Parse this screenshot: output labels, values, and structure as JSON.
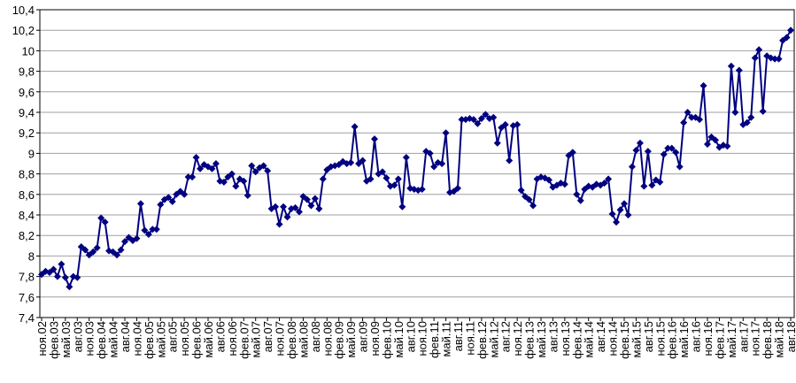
{
  "chart_data": {
    "type": "line",
    "categories": [
      "ноя.02",
      null,
      null,
      "фев.03",
      null,
      null,
      "май.03",
      null,
      null,
      "авг.03",
      null,
      null,
      "ноя.03",
      null,
      null,
      "фев.04",
      null,
      null,
      "май.04",
      null,
      null,
      "авг.04",
      null,
      null,
      "ноя.04",
      null,
      null,
      "фев.05",
      null,
      null,
      "май.05",
      null,
      null,
      "авг.05",
      null,
      null,
      "ноя.05",
      null,
      null,
      "фев.06",
      null,
      null,
      "май.06",
      null,
      null,
      "авг.06",
      null,
      null,
      "ноя.06",
      null,
      null,
      "фев.07",
      null,
      null,
      "май.07",
      null,
      null,
      "авг.07",
      null,
      null,
      "ноя.07",
      null,
      null,
      "фев.08",
      null,
      null,
      "май.08",
      null,
      null,
      "авг.08",
      null,
      null,
      "ноя.08",
      null,
      null,
      "фев.09",
      null,
      null,
      "май.09",
      null,
      null,
      "авг.09",
      null,
      null,
      "ноя.09",
      null,
      null,
      "фев.10",
      null,
      null,
      "май.10",
      null,
      null,
      "авг.10",
      null,
      null,
      "ноя.10",
      null,
      null,
      "фев.11",
      null,
      null,
      "май.11",
      null,
      null,
      "авг.11",
      null,
      null,
      "ноя.11",
      null,
      null,
      "фев.12",
      null,
      null,
      "май.12",
      null,
      null,
      "авг.12",
      null,
      null,
      "ноя.12",
      null,
      null,
      "фев.13",
      null,
      null,
      "май.13",
      null,
      null,
      "авг.13",
      null,
      null,
      "ноя.13",
      null,
      null,
      "фев.14",
      null,
      null,
      "май.14",
      null,
      null,
      "авг.14",
      null,
      null,
      "ноя.14",
      null,
      null,
      "фев.15",
      null,
      null,
      "май.15",
      null,
      null,
      "авг.15",
      null,
      null,
      "ноя.15",
      null,
      null,
      "фев.16",
      null,
      null,
      "май.16",
      null,
      null,
      "авг.16",
      null,
      null,
      "ноя.16",
      null,
      null,
      "фев.17",
      null,
      null,
      "май.17",
      null,
      null,
      "авг.17",
      null,
      null,
      "ноя.17",
      null,
      null,
      "фев.18",
      null,
      null,
      "май.18",
      null,
      null,
      "авг.18"
    ],
    "values": [
      7.82,
      7.85,
      7.84,
      7.87,
      7.8,
      7.92,
      7.79,
      7.7,
      7.8,
      7.79,
      8.09,
      8.06,
      8.01,
      8.04,
      8.08,
      8.37,
      8.33,
      8.05,
      8.04,
      8.01,
      8.06,
      8.14,
      8.18,
      8.15,
      8.17,
      8.51,
      8.25,
      8.21,
      8.26,
      8.26,
      8.5,
      8.55,
      8.57,
      8.53,
      8.6,
      8.63,
      8.6,
      8.77,
      8.77,
      8.96,
      8.85,
      8.89,
      8.87,
      8.85,
      8.9,
      8.73,
      8.72,
      8.77,
      8.8,
      8.68,
      8.75,
      8.73,
      8.59,
      8.88,
      8.82,
      8.86,
      8.88,
      8.83,
      8.46,
      8.48,
      8.31,
      8.48,
      8.38,
      8.46,
      8.47,
      8.43,
      8.58,
      8.55,
      8.49,
      8.56,
      8.46,
      8.75,
      8.84,
      8.87,
      8.88,
      8.89,
      8.92,
      8.9,
      8.91,
      9.26,
      8.9,
      8.93,
      8.73,
      8.75,
      9.14,
      8.8,
      8.82,
      8.76,
      8.68,
      8.69,
      8.75,
      8.48,
      8.96,
      8.66,
      8.65,
      8.64,
      8.65,
      9.02,
      9.0,
      8.87,
      8.91,
      8.9,
      9.2,
      8.62,
      8.63,
      8.66,
      9.33,
      9.33,
      9.34,
      9.33,
      9.29,
      9.34,
      9.38,
      9.34,
      9.35,
      9.1,
      9.25,
      9.28,
      8.93,
      9.27,
      9.28,
      8.64,
      8.58,
      8.55,
      8.49,
      8.75,
      8.77,
      8.76,
      8.74,
      8.67,
      8.69,
      8.71,
      8.7,
      8.98,
      9.01,
      8.6,
      8.54,
      8.65,
      8.68,
      8.67,
      8.7,
      8.69,
      8.71,
      8.75,
      8.41,
      8.33,
      8.45,
      8.51,
      8.4,
      8.87,
      9.03,
      9.1,
      8.68,
      9.02,
      8.69,
      8.74,
      8.72,
      8.99,
      9.05,
      9.05,
      9.01,
      8.87,
      9.3,
      9.4,
      9.35,
      9.35,
      9.33,
      9.66,
      9.09,
      9.16,
      9.13,
      9.06,
      9.08,
      9.07,
      9.85,
      9.4,
      9.81,
      9.28,
      9.3,
      9.35,
      9.93,
      10.01,
      9.41,
      9.95,
      9.93,
      9.92,
      9.92,
      10.1,
      10.13,
      10.2
    ],
    "color": "#000080",
    "ylim": [
      7.4,
      10.4
    ],
    "yticks": [
      {
        "value": 7.4,
        "label": "7,4"
      },
      {
        "value": 7.6,
        "label": "7,6"
      },
      {
        "value": 7.8,
        "label": "7,8"
      },
      8,
      {
        "value": 8.2,
        "label": "8,2"
      },
      {
        "value": 8.4,
        "label": "8,4"
      },
      {
        "value": 8.6,
        "label": "8,6"
      },
      {
        "value": 8.8,
        "label": "8,8"
      },
      9,
      {
        "value": 9.2,
        "label": "9,2"
      },
      {
        "value": 9.4,
        "label": "9,4"
      },
      {
        "value": 9.6,
        "label": "9,6"
      },
      {
        "value": 9.8,
        "label": "9,8"
      },
      10,
      {
        "value": 10.2,
        "label": "10,2"
      },
      {
        "value": 10.4,
        "label": "10,4"
      }
    ],
    "grid": true
  }
}
